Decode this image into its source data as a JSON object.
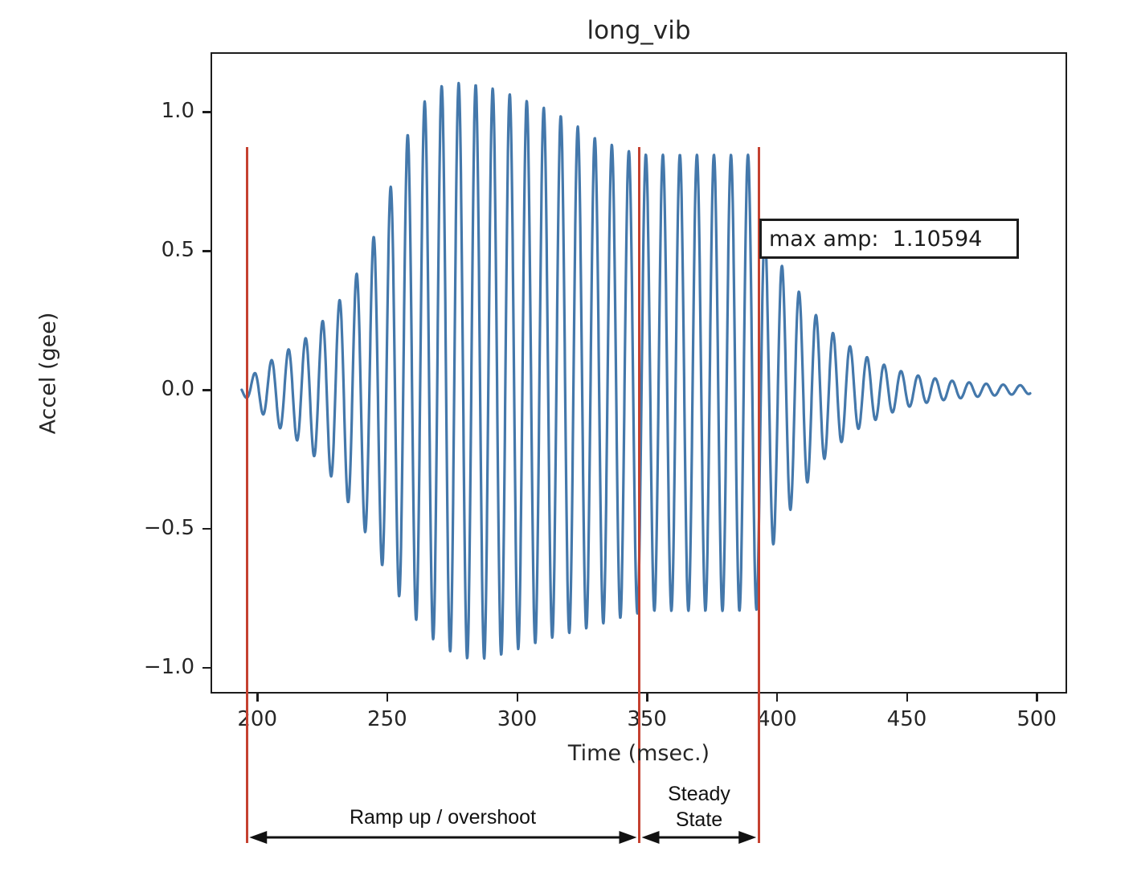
{
  "figure": {
    "background": "#ffffff",
    "frame_color": "#1c1c1c",
    "text_color": "#262626"
  },
  "chart_data": {
    "type": "line",
    "title": "long_vib",
    "xlabel": "Time (msec.)",
    "ylabel": "Accel (gee)",
    "xlim": [
      182,
      511.7
    ],
    "ylim": [
      -1.0925,
      1.2139
    ],
    "grid": false,
    "x_ticks": [
      200,
      250,
      300,
      350,
      400,
      450,
      500
    ],
    "x_tick_labels": [
      "200",
      "250",
      "300",
      "350",
      "400",
      "450",
      "500"
    ],
    "y_ticks": [
      1.0,
      0.5,
      0.0,
      -0.5,
      -1.0
    ],
    "y_tick_labels": [
      "1.0",
      "0.5",
      "0.0",
      "−0.5",
      "−1.0"
    ],
    "line_color": "#4478ab",
    "max_amp": 1.10594,
    "signal": {
      "t_start": 194,
      "t_end": 497.5,
      "period_msec": 6.55,
      "start_phase_pi": 1,
      "envelope_pos": [
        [
          194,
          0.02
        ],
        [
          196,
          0.03
        ],
        [
          200,
          0.07
        ],
        [
          206,
          0.11
        ],
        [
          212,
          0.145
        ],
        [
          218,
          0.18
        ],
        [
          224,
          0.235
        ],
        [
          230,
          0.3
        ],
        [
          236,
          0.38
        ],
        [
          242,
          0.48
        ],
        [
          248,
          0.63
        ],
        [
          253,
          0.78
        ],
        [
          258,
          0.92
        ],
        [
          263,
          1.02
        ],
        [
          268,
          1.08
        ],
        [
          274,
          1.105
        ],
        [
          282,
          1.1
        ],
        [
          290,
          1.085
        ],
        [
          298,
          1.06
        ],
        [
          306,
          1.03
        ],
        [
          314,
          1.0
        ],
        [
          322,
          0.955
        ],
        [
          330,
          0.905
        ],
        [
          338,
          0.875
        ],
        [
          344,
          0.855
        ],
        [
          350,
          0.845
        ],
        [
          390,
          0.845
        ],
        [
          392.5,
          0.84
        ],
        [
          394,
          0.62
        ],
        [
          397,
          0.5
        ],
        [
          400,
          0.47
        ],
        [
          404,
          0.42
        ],
        [
          409,
          0.345
        ],
        [
          414,
          0.28
        ],
        [
          419,
          0.225
        ],
        [
          424,
          0.185
        ],
        [
          429,
          0.15
        ],
        [
          434,
          0.12
        ],
        [
          440,
          0.095
        ],
        [
          446,
          0.072
        ],
        [
          452,
          0.055
        ],
        [
          458,
          0.045
        ],
        [
          465,
          0.035
        ],
        [
          472,
          0.028
        ],
        [
          480,
          0.022
        ],
        [
          488,
          0.018
        ],
        [
          497.5,
          0.015
        ]
      ],
      "envelope_neg": [
        [
          194,
          -0.02
        ],
        [
          196,
          -0.03
        ],
        [
          200,
          -0.07
        ],
        [
          206,
          -0.12
        ],
        [
          212,
          -0.16
        ],
        [
          218,
          -0.2
        ],
        [
          224,
          -0.26
        ],
        [
          230,
          -0.33
        ],
        [
          236,
          -0.42
        ],
        [
          242,
          -0.52
        ],
        [
          248,
          -0.63
        ],
        [
          253,
          -0.72
        ],
        [
          258,
          -0.79
        ],
        [
          263,
          -0.85
        ],
        [
          268,
          -0.9
        ],
        [
          274,
          -0.94
        ],
        [
          282,
          -0.97
        ],
        [
          290,
          -0.965
        ],
        [
          298,
          -0.94
        ],
        [
          306,
          -0.915
        ],
        [
          314,
          -0.89
        ],
        [
          322,
          -0.87
        ],
        [
          330,
          -0.85
        ],
        [
          338,
          -0.825
        ],
        [
          344,
          -0.81
        ],
        [
          350,
          -0.795
        ],
        [
          390,
          -0.795
        ],
        [
          392.5,
          -0.79
        ],
        [
          394,
          -0.72
        ],
        [
          397,
          -0.6
        ],
        [
          400,
          -0.52
        ],
        [
          404,
          -0.45
        ],
        [
          409,
          -0.375
        ],
        [
          414,
          -0.3
        ],
        [
          419,
          -0.24
        ],
        [
          424,
          -0.195
        ],
        [
          429,
          -0.155
        ],
        [
          434,
          -0.125
        ],
        [
          440,
          -0.1
        ],
        [
          446,
          -0.075
        ],
        [
          452,
          -0.058
        ],
        [
          458,
          -0.046
        ],
        [
          465,
          -0.036
        ],
        [
          472,
          -0.029
        ],
        [
          480,
          -0.023
        ],
        [
          488,
          -0.018
        ],
        [
          497.5,
          -0.015
        ]
      ]
    }
  },
  "annotations": {
    "max_amp_label": "max amp:  1.10594",
    "region_line_color": "#c54130",
    "region_lines_msec": [
      196,
      347,
      393
    ],
    "arrow_color": "#111111",
    "regions": [
      {
        "label": "Ramp up / overshoot",
        "from_msec": 196,
        "to_msec": 347
      },
      {
        "label": "Steady State",
        "label_lines": [
          "Steady",
          "State"
        ],
        "from_msec": 347,
        "to_msec": 393
      }
    ]
  }
}
